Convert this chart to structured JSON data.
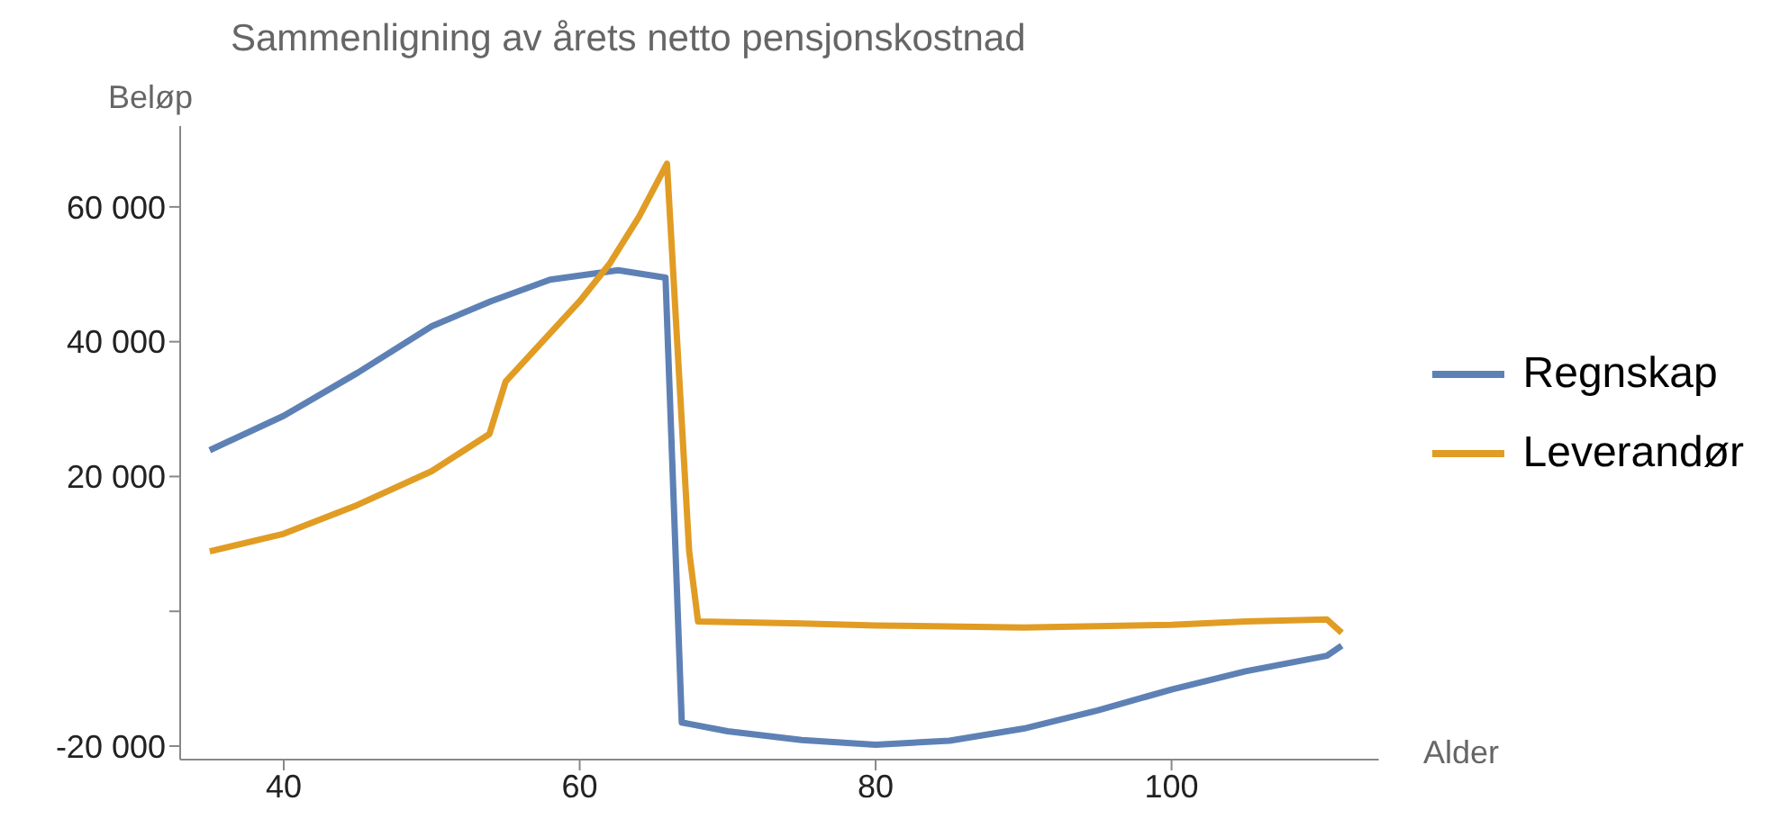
{
  "chart_data": {
    "type": "line",
    "title": "Sammenligning av årets netto pensjonskostnad",
    "xlabel": "Alder",
    "ylabel": "Beløp",
    "xlim": [
      33,
      114
    ],
    "xticks": [
      40,
      60,
      80,
      100
    ],
    "ylim": [
      -22000,
      72000
    ],
    "yticks": [
      {
        "value": -20000,
        "label": "-20 000"
      },
      {
        "value": 0,
        "label": null
      },
      {
        "value": 20000,
        "label": "20 000"
      },
      {
        "value": 40000,
        "label": "40 000"
      },
      {
        "value": 60000,
        "label": "60 000"
      }
    ],
    "grid": false,
    "legend": "right",
    "marker": "none",
    "line_style": "solid",
    "series": [
      {
        "name": "Regnskap",
        "color": "#5e81b5",
        "x": [
          35,
          40,
          45,
          50,
          54,
          58,
          62.6,
          65.8,
          66.9,
          70,
          75,
          80,
          85,
          90,
          95,
          100,
          105,
          110.5,
          111.5
        ],
        "values": [
          23900,
          29000,
          35400,
          42300,
          46000,
          49200,
          50600,
          49500,
          -16500,
          -17800,
          -19100,
          -19800,
          -19200,
          -17400,
          -14700,
          -11600,
          -8900,
          -6600,
          -5100
        ]
      },
      {
        "name": "Leverandør",
        "color": "#e19c24",
        "x": [
          35,
          40,
          45,
          50,
          53.9,
          55,
          60,
          62,
          64,
          65.9,
          67.4,
          68,
          75,
          80,
          90,
          100,
          105,
          110.5,
          111.5
        ],
        "values": [
          8900,
          11500,
          15800,
          20800,
          26300,
          34100,
          46000,
          51500,
          58500,
          66400,
          8900,
          -1500,
          -1800,
          -2100,
          -2400,
          -2000,
          -1500,
          -1200,
          -3200
        ]
      }
    ]
  }
}
